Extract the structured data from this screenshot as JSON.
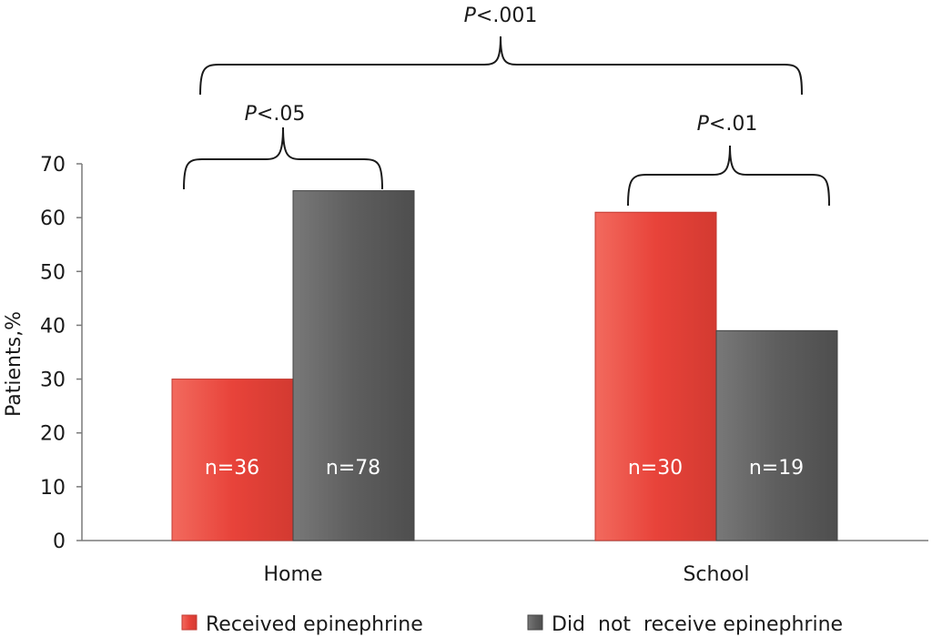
{
  "chart_data": {
    "type": "bar",
    "categories": [
      "Home",
      "School"
    ],
    "ylabel": "Patients,%",
    "ylim": [
      0,
      70
    ],
    "yticks": [
      0,
      10,
      20,
      30,
      40,
      50,
      60,
      70
    ],
    "series": [
      {
        "name": "Received epinephrine",
        "color": "#e8433a",
        "values": [
          30,
          61
        ],
        "labels": [
          "n=36",
          "n=30"
        ]
      },
      {
        "name": "Did  not  receive epinephrine",
        "color": "#5e5e5e",
        "values": [
          65,
          39
        ],
        "labels": [
          "n=78",
          "n=19"
        ]
      }
    ],
    "annotations": [
      {
        "p_prefix": "P",
        "p_text": "<.05",
        "spans": "Home"
      },
      {
        "p_prefix": "P",
        "p_text": "<.01",
        "spans": "School"
      },
      {
        "p_prefix": "P",
        "p_text": "<.001",
        "spans": "Home vs School"
      }
    ],
    "legend_position": "bottom",
    "grid": false
  }
}
